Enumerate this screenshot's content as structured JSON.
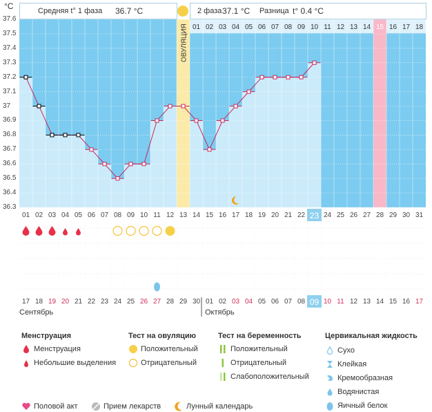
{
  "header": {
    "y_unit": "°C",
    "phase1_label": "Средняя t° 1 фаза",
    "phase1_value": "36.7 °C",
    "phase2_label": "2 фаза",
    "phase2_value": "37.1 °C",
    "diff_label": "Разница",
    "diff_value": "t° 0.4 °C"
  },
  "chart_data": {
    "type": "area",
    "title": "",
    "ylabel": "°C",
    "ylim": [
      36.3,
      37.6
    ],
    "yticks": [
      "37.6",
      "37.5",
      "37.4",
      "37.3",
      "37.2",
      "37.1",
      "37",
      "36.9",
      "36.8",
      "36.7",
      "36.6",
      "36.5",
      "36.4",
      "36.3"
    ],
    "cycle_days": [
      "01",
      "02",
      "03",
      "04",
      "05",
      "06",
      "07",
      "08",
      "09",
      "10",
      "11",
      "12",
      "13",
      "14",
      "15",
      "16",
      "17",
      "18",
      "19",
      "20",
      "21",
      "22",
      "23",
      "24",
      "25",
      "26",
      "27",
      "28",
      "29",
      "30",
      "31"
    ],
    "temperatures": [
      37.2,
      37.0,
      36.8,
      36.8,
      36.8,
      36.7,
      36.6,
      36.5,
      36.6,
      36.6,
      36.9,
      37.0,
      37.0,
      36.9,
      36.7,
      36.9,
      37.0,
      37.1,
      37.2,
      37.2,
      37.2,
      37.2,
      37.3
    ],
    "point_style": [
      "black",
      "black",
      "black",
      "black",
      "black",
      "pink",
      "pink",
      "pink",
      "pink",
      "pink",
      "pink",
      "pink",
      "pink",
      "pink",
      "pink",
      "pink",
      "pink",
      "pink",
      "pink",
      "pink",
      "pink",
      "pink",
      "pink"
    ],
    "ovulation_label": "ОВУЛЯЦИЯ",
    "ovulation_day": 13,
    "current_day": 23,
    "phase2_day_labels": [
      "01",
      "02",
      "03",
      "04",
      "05",
      "06",
      "07",
      "08",
      "09",
      "10",
      "11",
      "12",
      "13",
      "14",
      "15",
      "16",
      "17",
      "18"
    ],
    "highlight_phase2_index": 15,
    "moon_day": 17,
    "calendar_dates": [
      "17",
      "18",
      "19",
      "20",
      "21",
      "22",
      "23",
      "24",
      "25",
      "26",
      "27",
      "28",
      "29",
      "30",
      "01",
      "02",
      "03",
      "04",
      "05",
      "06",
      "07",
      "08",
      "09",
      "10",
      "11",
      "12",
      "13",
      "14",
      "15",
      "16",
      "17"
    ],
    "calendar_red": [
      false,
      false,
      true,
      true,
      false,
      false,
      false,
      false,
      false,
      true,
      true,
      false,
      false,
      false,
      false,
      false,
      true,
      true,
      false,
      false,
      false,
      false,
      false,
      true,
      true,
      false,
      false,
      false,
      false,
      false,
      true
    ],
    "month1": "Сентябрь",
    "month2": "Октябрь",
    "menstruation": [
      "big",
      "big",
      "big",
      "small",
      "small"
    ],
    "ovulation_tests": [
      "negative",
      "negative",
      "negative",
      "negative",
      "positive"
    ],
    "ovulation_tests_start_day": 8,
    "egg_white_day": 11
  },
  "legend": {
    "menstruation": {
      "title": "Менструация",
      "items": [
        "Менструация",
        "Небольшие выделения"
      ]
    },
    "ovulation_test": {
      "title": "Тест на овуляцию",
      "items": [
        "Положительный",
        "Отрицательный"
      ]
    },
    "pregnancy_test": {
      "title": "Тест на беременность",
      "items": [
        "Положительный",
        "Отрицательный",
        "Слабоположительный"
      ]
    },
    "cervical": {
      "title": "Цервикальная жидкость",
      "items": [
        "Сухо",
        "Клейкая",
        "Кремообразная",
        "Водянистая",
        "Яичный белок"
      ]
    },
    "bottom": [
      "Половой акт",
      "Прием лекарств",
      "Лунный календарь"
    ],
    "colors": {
      "red": "#e8304a",
      "yellow": "#f7d04a",
      "green": "#8cc63f",
      "blue": "#7cc4ec",
      "pink": "#e84a8a",
      "gray": "#aaaaaa",
      "orange": "#f2a21e"
    }
  }
}
